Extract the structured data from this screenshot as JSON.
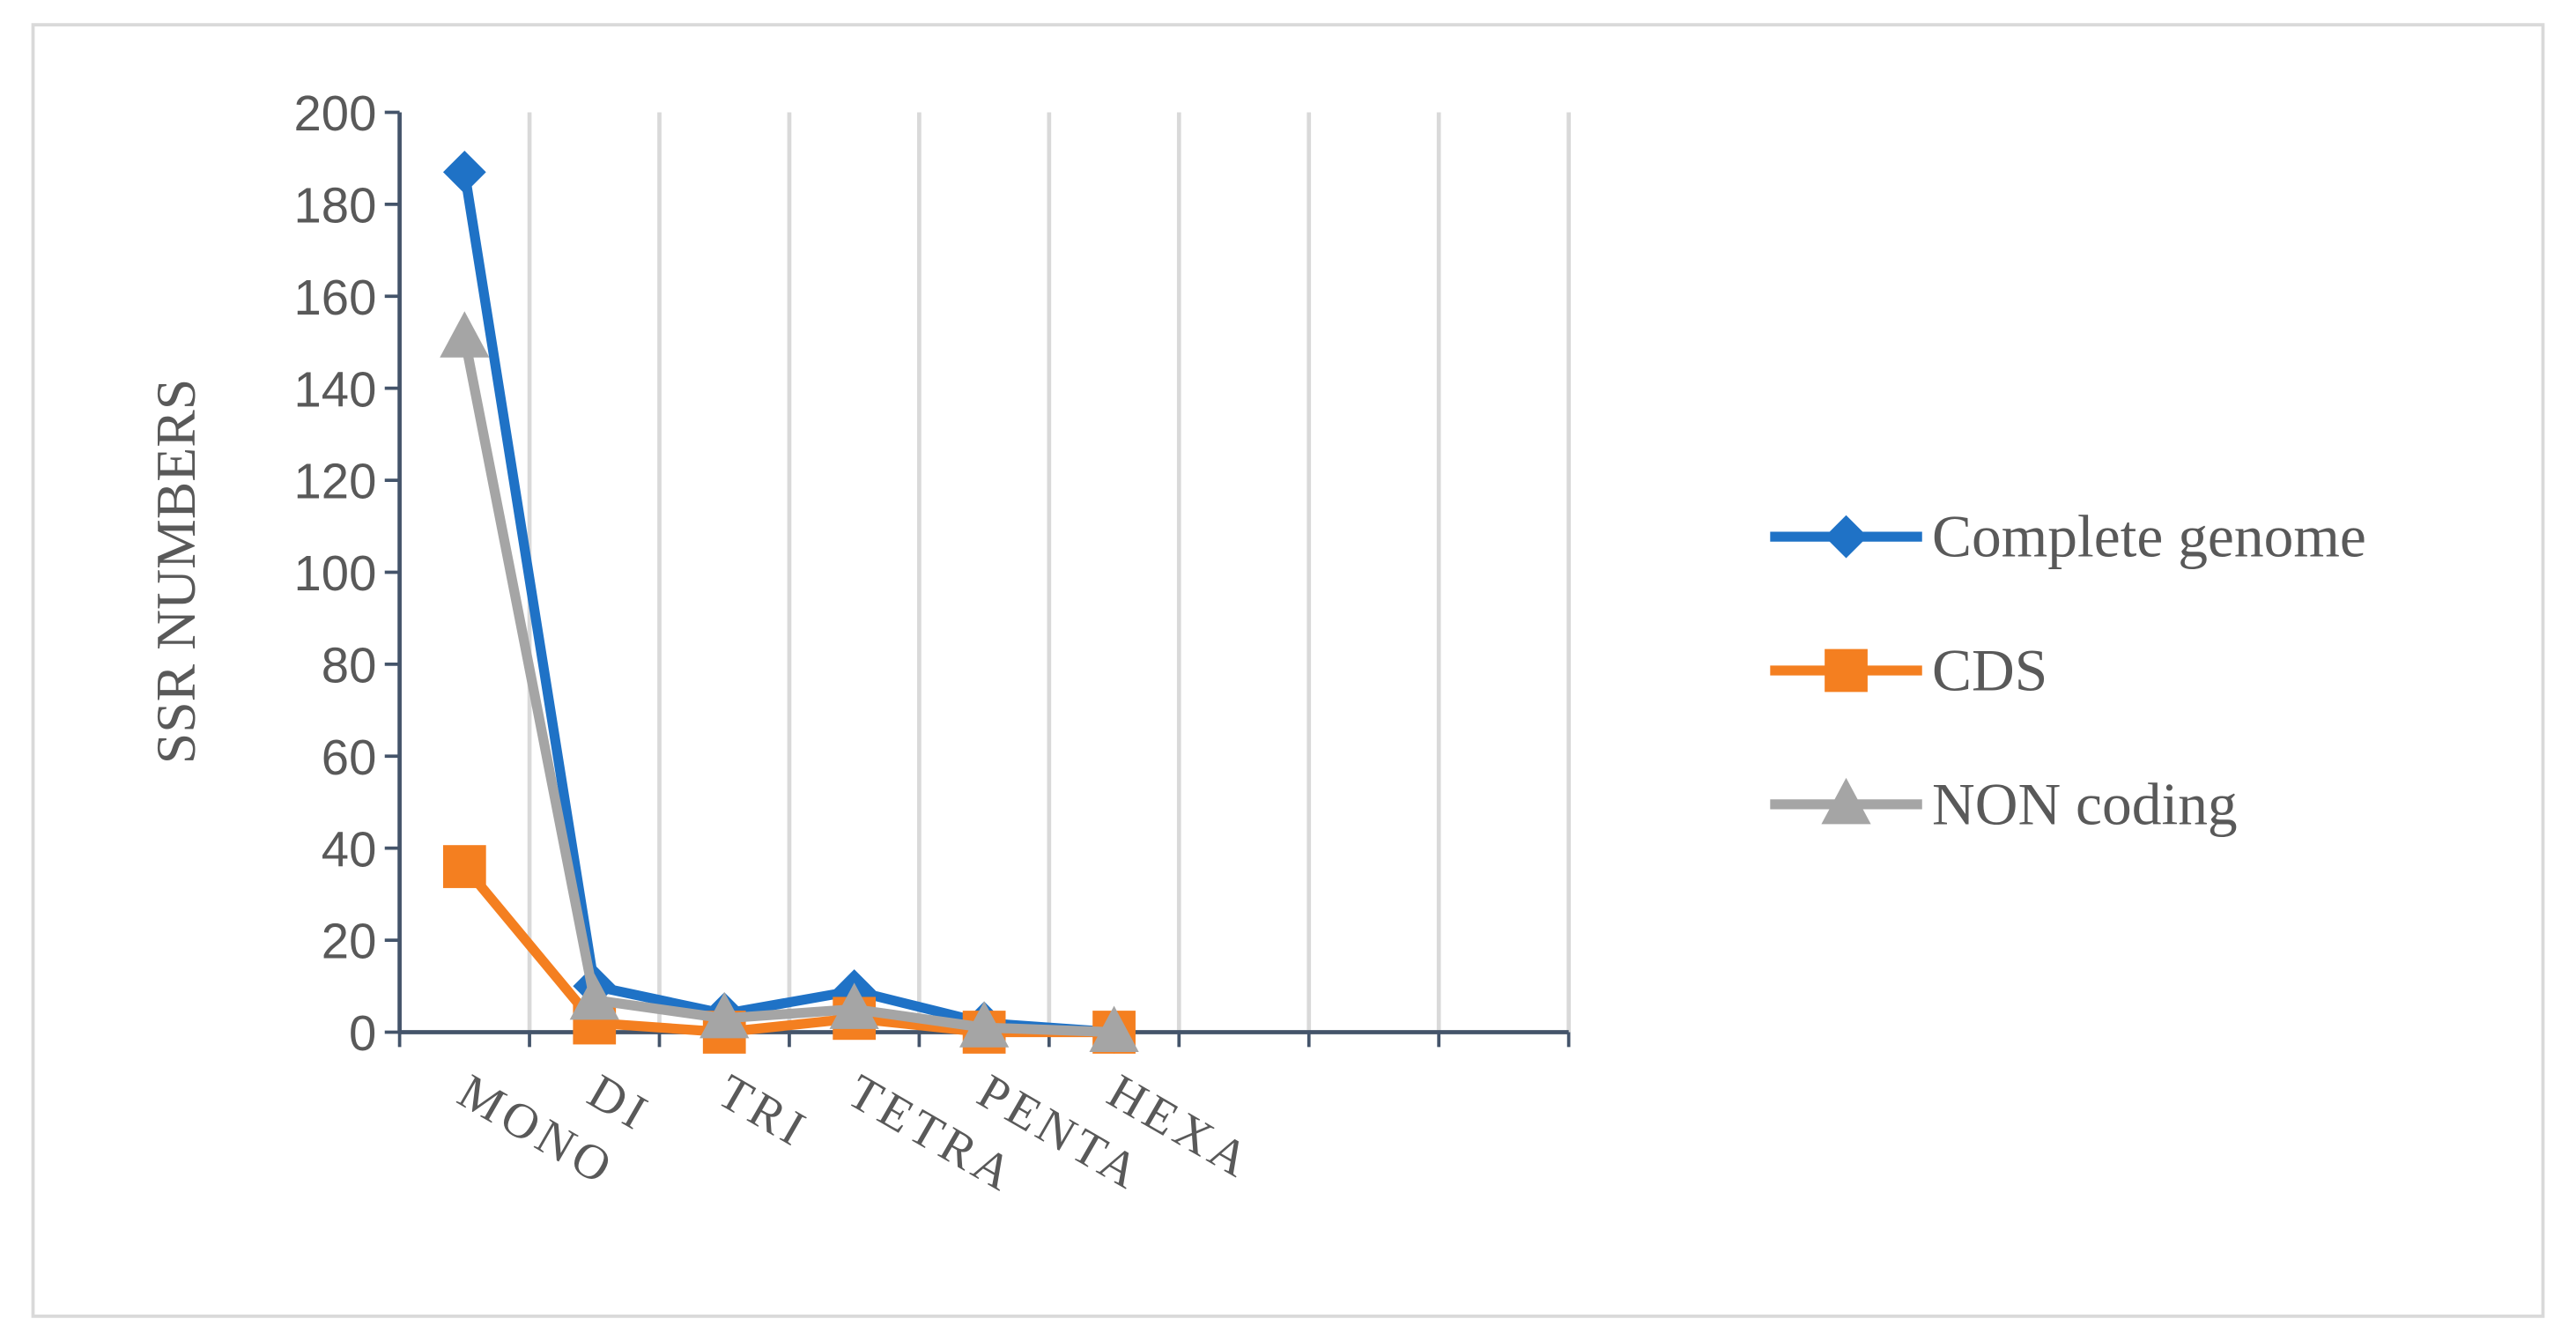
{
  "chart_data": {
    "type": "line",
    "y_label": "SSR NUMBERS",
    "categories": [
      "MONO",
      "DI",
      "TRI",
      "TETRA",
      "PENTA",
      "HEXA",
      null,
      null,
      null
    ],
    "series": [
      {
        "name": "Complete genome",
        "color": "#1f72c6",
        "marker": "diamond",
        "values": [
          187,
          10,
          4,
          9,
          2,
          0,
          null,
          null,
          null
        ]
      },
      {
        "name": "CDS",
        "color": "#f47f20",
        "marker": "square",
        "values": [
          36,
          2,
          0,
          3,
          0,
          0,
          null,
          null,
          null
        ]
      },
      {
        "name": "NON coding",
        "color": "#a5a5a5",
        "marker": "triangle",
        "values": [
          151,
          7,
          3,
          5,
          1,
          0,
          null,
          null,
          null
        ]
      }
    ],
    "ylim": [
      0,
      200
    ],
    "yticks": [
      0,
      20,
      40,
      60,
      80,
      100,
      120,
      140,
      160,
      180,
      200
    ],
    "grid": true,
    "legend": "right"
  }
}
